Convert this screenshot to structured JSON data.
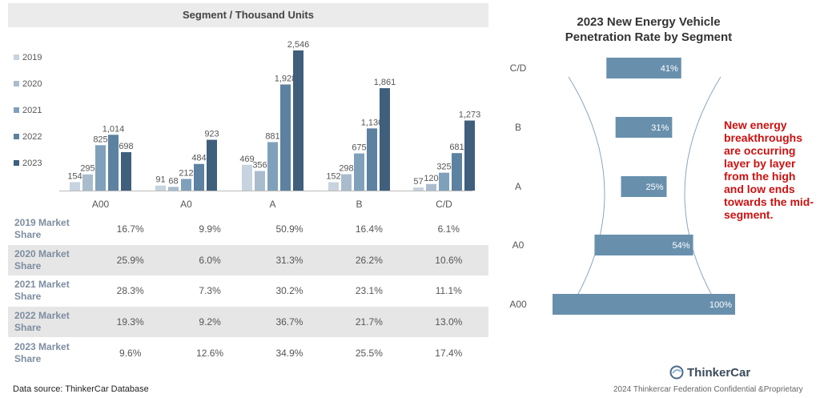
{
  "left_chart": {
    "title": "Segment / Thousand Units"
  },
  "chart_data": [
    {
      "type": "bar",
      "title": "Segment / Thousand Units",
      "categories": [
        "A00",
        "A0",
        "A",
        "B",
        "C/D"
      ],
      "series": [
        {
          "name": "2019",
          "color": "#c7d3de",
          "values": [
            154,
            91,
            469,
            152,
            57
          ]
        },
        {
          "name": "2020",
          "color": "#a9bccd",
          "values": [
            295,
            68,
            356,
            298,
            120
          ]
        },
        {
          "name": "2021",
          "color": "#7fa0bb",
          "values": [
            825,
            212,
            881,
            675,
            325
          ]
        },
        {
          "name": "2022",
          "color": "#5c81a1",
          "values": [
            1014,
            484,
            1928,
            1130,
            681
          ]
        },
        {
          "name": "2023",
          "color": "#3f5f7c",
          "values": [
            698,
            923,
            2546,
            1861,
            1273
          ]
        }
      ],
      "value_labels": [
        [
          "154",
          "91",
          "469",
          "152",
          "57"
        ],
        [
          "295",
          "68",
          "356",
          "298",
          "120"
        ],
        [
          "825",
          "212",
          "881",
          "675",
          "325"
        ],
        [
          "1,014",
          "484",
          "1,928",
          "1,130",
          "681"
        ],
        [
          "698",
          "923",
          "2,546",
          "1,861",
          "1,273"
        ]
      ],
      "ylim": [
        0,
        2546
      ],
      "legend": "left",
      "grid": false
    },
    {
      "type": "bar",
      "orientation": "horizontal",
      "title": "2023 New Energy Vehicle Penetration Rate by Segment",
      "categories": [
        "C/D",
        "B",
        "A",
        "A0",
        "A00"
      ],
      "values": [
        41,
        31,
        25,
        54,
        100
      ],
      "labels": [
        "41%",
        "31%",
        "25%",
        "54%",
        "100%"
      ],
      "color": "#6890ad",
      "grid": false
    }
  ],
  "market_share": {
    "rows": [
      {
        "label": "2019 Market Share",
        "values": [
          "16.7%",
          "9.9%",
          "50.9%",
          "16.4%",
          "6.1%"
        ]
      },
      {
        "label": "2020 Market Share",
        "values": [
          "25.9%",
          "6.0%",
          "31.3%",
          "26.2%",
          "10.6%"
        ]
      },
      {
        "label": "2021 Market Share",
        "values": [
          "28.3%",
          "7.3%",
          "30.2%",
          "23.1%",
          "11.1%"
        ]
      },
      {
        "label": "2022 Market Share",
        "values": [
          "19.3%",
          "9.2%",
          "36.7%",
          "21.7%",
          "13.0%"
        ]
      },
      {
        "label": "2023 Market Share",
        "values": [
          "9.6%",
          "12.6%",
          "34.9%",
          "25.5%",
          "17.4%"
        ]
      }
    ]
  },
  "data_source": "Data source: ThinkerCar Database",
  "right_chart": {
    "title": "2023 New Energy Vehicle Penetration Rate by Segment"
  },
  "annotation": "New energy breakthroughs are occurring layer by layer from the high and low ends towards the mid-segment.",
  "logo": {
    "text": "ThinkerCar",
    "icon": "thinkercar-logo-icon"
  },
  "footer": "2024 Thinkercar Federation Confidential &Proprietary"
}
